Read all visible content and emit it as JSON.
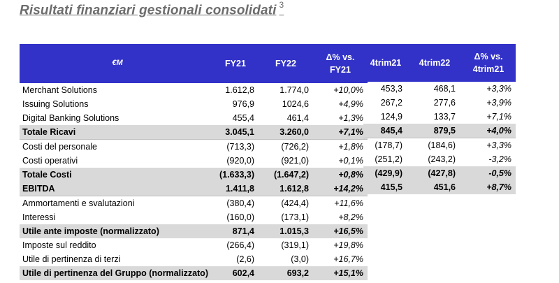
{
  "title": "Risultati finanziari gestionali consolidati",
  "title_superscript": "3",
  "header": {
    "unit": "€M",
    "fy21": "FY21",
    "fy22": "FY22",
    "delta_fy_line1": "Δ% vs.",
    "delta_fy_line2": "FY21",
    "q21": "4trim21",
    "q22": "4trim22",
    "delta_q_line1": "Δ% vs.",
    "delta_q_line2": "4trim21"
  },
  "rows": [
    {
      "label": "Merchant Solutions",
      "fy21": "1.612,8",
      "fy22": "1.774,0",
      "dfy": "+10,0%",
      "q21": "453,3",
      "q22": "468,1",
      "dq": "+3,3%"
    },
    {
      "label": "Issuing Solutions",
      "fy21": "976,9",
      "fy22": "1024,6",
      "dfy": "+4,9%",
      "q21": "267,2",
      "q22": "277,6",
      "dq": "+3,9%"
    },
    {
      "label": "Digital Banking Solutions",
      "fy21": "455,4",
      "fy22": "461,4",
      "dfy": "+1,3%",
      "q21": "124,9",
      "q22": "133,7",
      "dq": "+7,1%"
    },
    {
      "label": "Totale Ricavi",
      "fy21": "3.045,1",
      "fy22": "3.260,0",
      "dfy": "+7,1%",
      "q21": "845,4",
      "q22": "879,5",
      "dq": "+4,0%"
    },
    {
      "label": "Costi del personale",
      "fy21": "(713,3)",
      "fy22": "(726,2)",
      "dfy": "+1,8%",
      "q21": "(178,7)",
      "q22": "(184,6)",
      "dq": "+3,3%"
    },
    {
      "label": "Costi operativi",
      "fy21": "(920,0)",
      "fy22": "(921,0)",
      "dfy": "+0,1%",
      "q21": "(251,2)",
      "q22": "(243,2)",
      "dq": "-3,2%"
    },
    {
      "label": "Totale Costi",
      "fy21": "(1.633,3)",
      "fy22": "(1.647,2)",
      "dfy": "+0,8%",
      "q21": "(429,9)",
      "q22": "(427,8)",
      "dq": "-0,5%"
    },
    {
      "label": "EBITDA",
      "fy21": "1.411,8",
      "fy22": "1.612,8",
      "dfy": "+14,2%",
      "q21": "415,5",
      "q22": "451,6",
      "dq": "+8,7%"
    },
    {
      "label": "Ammortamenti e svalutazioni",
      "fy21": "(380,4)",
      "fy22": "(424,4)",
      "dfy": "+11,6%"
    },
    {
      "label": "Interessi",
      "fy21": "(160,0)",
      "fy22": "(173,1)",
      "dfy": "+8,2%"
    },
    {
      "label": "Utile ante imposte (normalizzato)",
      "fy21": "871,4",
      "fy22": "1.015,3",
      "dfy": "+16,5%"
    },
    {
      "label": "Imposte sul reddito",
      "fy21": "(266,4)",
      "fy22": "(319,1)",
      "dfy": "+19,8%"
    },
    {
      "label": "Utile di pertinenza di terzi",
      "fy21": "(2,6)",
      "fy22": "(3,0)",
      "dfy": "+16,7%"
    },
    {
      "label": "Utile di pertinenza del Gruppo (normalizzato)",
      "fy21": "602,4",
      "fy22": "693,2",
      "dfy": "+15,1%"
    }
  ]
}
